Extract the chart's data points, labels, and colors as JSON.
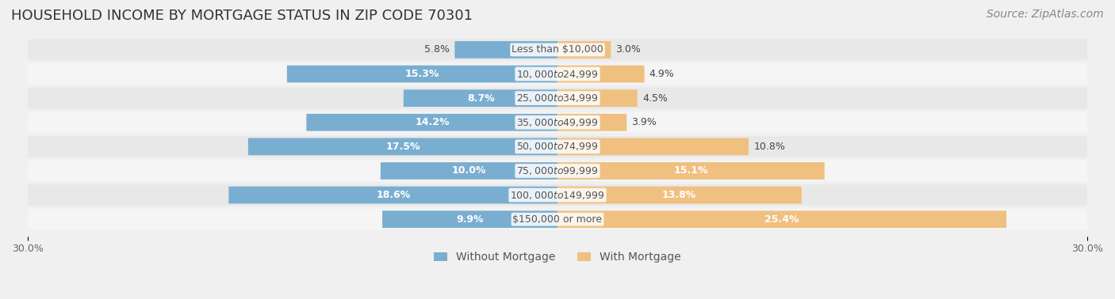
{
  "title": "HOUSEHOLD INCOME BY MORTGAGE STATUS IN ZIP CODE 70301",
  "source": "Source: ZipAtlas.com",
  "categories": [
    "Less than $10,000",
    "$10,000 to $24,999",
    "$25,000 to $34,999",
    "$35,000 to $49,999",
    "$50,000 to $74,999",
    "$75,000 to $99,999",
    "$100,000 to $149,999",
    "$150,000 or more"
  ],
  "without_mortgage": [
    5.8,
    15.3,
    8.7,
    14.2,
    17.5,
    10.0,
    18.6,
    9.9
  ],
  "with_mortgage": [
    3.0,
    4.9,
    4.5,
    3.9,
    10.8,
    15.1,
    13.8,
    25.4
  ],
  "color_without": "#7aaed0",
  "color_with": "#f0c080",
  "xlim": 30.0,
  "bg_color": "#f0f0f0",
  "row_bg_even": "#e8e8e8",
  "row_bg_odd": "#f5f5f5",
  "title_fontsize": 13,
  "source_fontsize": 10,
  "label_fontsize": 9,
  "axis_label_fontsize": 9,
  "legend_fontsize": 10
}
